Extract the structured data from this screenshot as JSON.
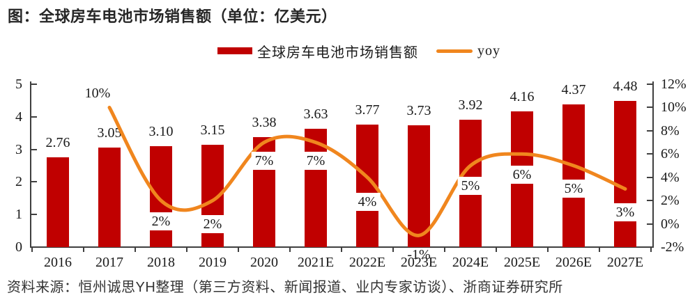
{
  "title": "图：全球房车电池市场销售额（单位：亿美元）",
  "source": "资料来源：恒州诚思YH整理（第三方资料、新闻报道、业内专家访谈）、浙商证券研究所",
  "legend": {
    "bar": {
      "label": "全球房车电池市场销售额",
      "color": "#C00000"
    },
    "line": {
      "label": "yoy",
      "color": "#F0861E"
    }
  },
  "colors": {
    "bar": "#C00000",
    "line": "#F0861E",
    "axis": "#3F3F3F",
    "text": "#1A1A1A"
  },
  "chart_data": {
    "type": "bar",
    "title": "全球房车电池市场销售额（单位：亿美元）",
    "categories": [
      "2016",
      "2017",
      "2018",
      "2019",
      "2020",
      "2021E",
      "2022E",
      "2023E",
      "2024E",
      "2025E",
      "2026E",
      "2027E"
    ],
    "series": [
      {
        "name": "全球房车电池市场销售额",
        "type": "bar",
        "axis": "left",
        "color": "#C00000",
        "values": [
          2.76,
          3.05,
          3.1,
          3.15,
          3.38,
          3.63,
          3.77,
          3.73,
          3.92,
          4.16,
          4.37,
          4.48
        ],
        "labels": [
          "2.76",
          "3.05",
          "3.10",
          "3.15",
          "3.38",
          "3.63",
          "3.77",
          "3.73",
          "3.92",
          "4.16",
          "4.37",
          "4.48"
        ]
      },
      {
        "name": "yoy",
        "type": "line",
        "axis": "right",
        "color": "#F0861E",
        "values": [
          null,
          10,
          2,
          2,
          7,
          7,
          4,
          -1,
          5,
          6,
          5,
          3
        ],
        "labels": [
          null,
          "10%",
          "2%",
          "2%",
          "7%",
          "7%",
          "4%",
          "-1%",
          "5%",
          "6%",
          "5%",
          "3%"
        ],
        "label_dx": [
          0,
          -17,
          0,
          0,
          0,
          0,
          0,
          0,
          0,
          0,
          0,
          0
        ],
        "label_dy": [
          0,
          -20,
          30,
          34,
          26,
          26,
          35,
          28,
          29,
          30,
          33,
          34
        ],
        "label_bg": [
          false,
          false,
          true,
          true,
          true,
          true,
          true,
          false,
          true,
          true,
          true,
          true
        ]
      }
    ],
    "left_axis": {
      "min": 0,
      "max": 5,
      "tick_step": 1,
      "tick_labels": [
        "0",
        "1",
        "2",
        "3",
        "4",
        "5"
      ]
    },
    "right_axis": {
      "min": -2,
      "max": 12,
      "tick_step": 2,
      "tick_labels": [
        "-2%",
        "0%",
        "2%",
        "4%",
        "6%",
        "8%",
        "10%",
        "12%"
      ]
    },
    "grid": false,
    "legend_position": "top"
  }
}
